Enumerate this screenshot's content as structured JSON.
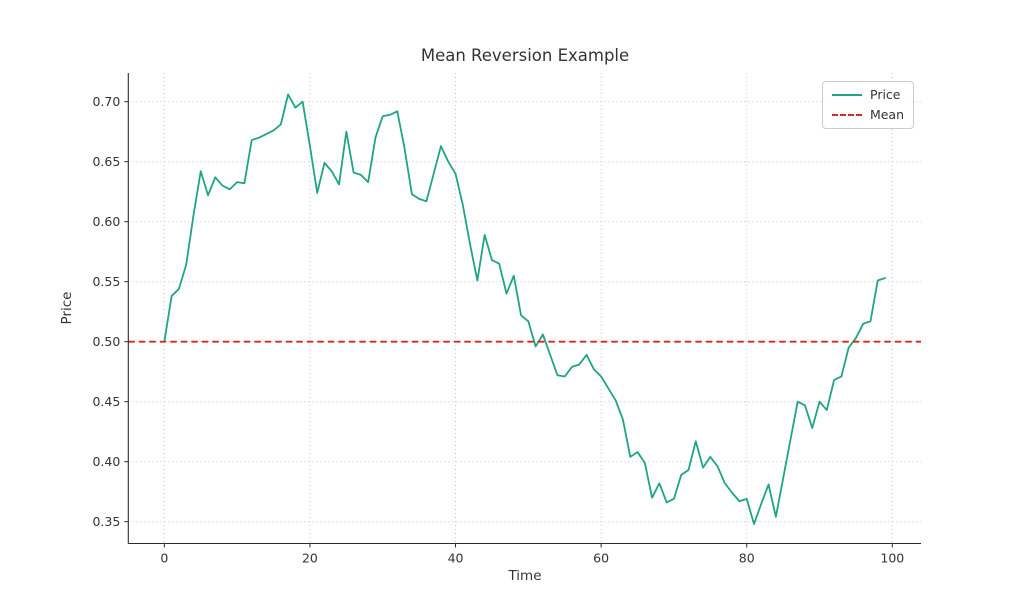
{
  "title": "Mean Reversion Example",
  "chart_data": {
    "type": "line",
    "title": "Mean Reversion Example",
    "xlabel": "Time",
    "ylabel": "Price",
    "xlim": [
      -4.95,
      103.94
    ],
    "ylim": [
      0.3318,
      0.7239
    ],
    "xticks": [
      0,
      20,
      40,
      60,
      80,
      100
    ],
    "yticks": [
      0.35,
      0.4,
      0.45,
      0.5,
      0.55,
      0.6,
      0.65,
      0.7
    ],
    "ytick_format_decimals": 2,
    "grid": "dotted",
    "grid_color": "#c9c9c9",
    "spine_color": "#2b2b2b",
    "legend_position": "upper right",
    "series": [
      {
        "name": "Price",
        "type": "line",
        "style": "solid",
        "color": "#20a387",
        "x_start": 0,
        "x_step": 1,
        "values": [
          0.5,
          0.538,
          0.544,
          0.564,
          0.605,
          0.642,
          0.622,
          0.637,
          0.63,
          0.627,
          0.633,
          0.632,
          0.668,
          0.67,
          0.673,
          0.676,
          0.681,
          0.706,
          0.695,
          0.7,
          0.663,
          0.624,
          0.649,
          0.642,
          0.631,
          0.675,
          0.641,
          0.639,
          0.633,
          0.67,
          0.688,
          0.689,
          0.692,
          0.661,
          0.623,
          0.619,
          0.617,
          0.64,
          0.663,
          0.65,
          0.64,
          0.614,
          0.581,
          0.551,
          0.589,
          0.568,
          0.565,
          0.54,
          0.555,
          0.522,
          0.517,
          0.496,
          0.506,
          0.489,
          0.472,
          0.471,
          0.479,
          0.481,
          0.489,
          0.477,
          0.471,
          0.461,
          0.451,
          0.435,
          0.404,
          0.408,
          0.399,
          0.37,
          0.382,
          0.366,
          0.369,
          0.389,
          0.393,
          0.417,
          0.395,
          0.404,
          0.396,
          0.382,
          0.374,
          0.367,
          0.369,
          0.348,
          0.365,
          0.381,
          0.354,
          0.386,
          0.418,
          0.45,
          0.447,
          0.428,
          0.45,
          0.443,
          0.468,
          0.471,
          0.495,
          0.503,
          0.515,
          0.517,
          0.551,
          0.553
        ]
      },
      {
        "name": "Mean",
        "type": "hline",
        "style": "dashed",
        "color": "#d62728",
        "value": 0.5
      }
    ]
  }
}
